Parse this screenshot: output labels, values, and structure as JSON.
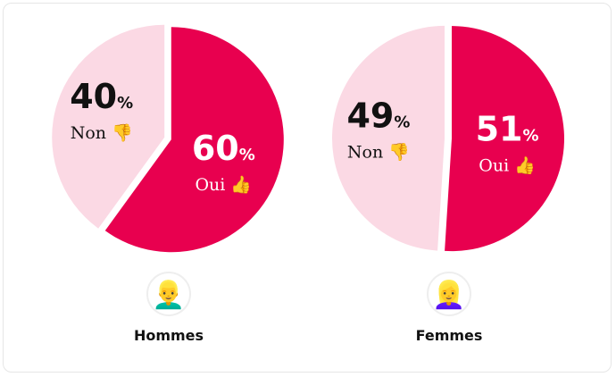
{
  "chart_data": [
    {
      "type": "pie",
      "group": "Hommes",
      "avatar": "man-emoji",
      "slices": [
        {
          "label": "Oui",
          "emoji": "👍",
          "value": 60,
          "color": "#e8004f"
        },
        {
          "label": "Non",
          "emoji": "👎",
          "value": 40,
          "color": "#fbd9e4"
        }
      ]
    },
    {
      "type": "pie",
      "group": "Femmes",
      "avatar": "woman-emoji",
      "slices": [
        {
          "label": "Oui",
          "emoji": "👍",
          "value": 51,
          "color": "#e8004f"
        },
        {
          "label": "Non",
          "emoji": "👎",
          "value": 49,
          "color": "#fbd9e4"
        }
      ]
    }
  ],
  "avatars": [
    "👱‍♂️",
    "👱‍♀️"
  ],
  "percent_symbol": "%"
}
